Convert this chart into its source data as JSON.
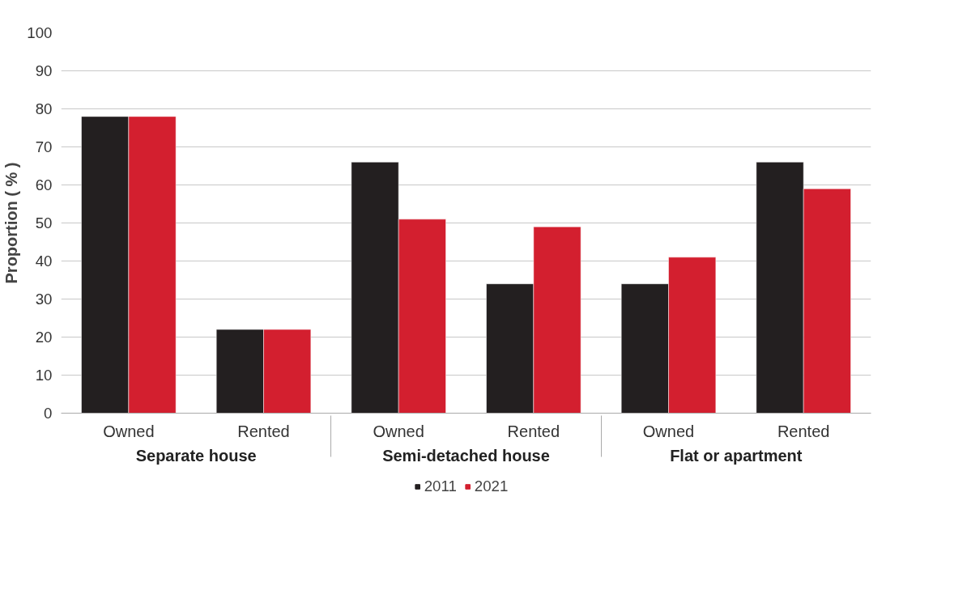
{
  "chart_data": {
    "type": "bar",
    "ylabel": "Proportion ( % )",
    "categories": [
      "Owned",
      "Rented",
      "Owned",
      "Rented",
      "Owned",
      "Rented"
    ],
    "annotations": [
      "Separate house",
      "Semi-detached house",
      "Flat or apartment"
    ],
    "series": [
      {
        "name": "2011",
        "color": "#231f20",
        "values": [
          78,
          22,
          66,
          34,
          34,
          66
        ]
      },
      {
        "name": "2021",
        "color": "#d31f2f",
        "values": [
          78,
          22,
          51,
          49,
          41,
          59
        ]
      }
    ],
    "ylim": [
      0,
      100
    ],
    "yticks": [
      0,
      10,
      20,
      30,
      40,
      50,
      60,
      70,
      80,
      90,
      100
    ],
    "grid": "y",
    "legend": "bottom"
  }
}
